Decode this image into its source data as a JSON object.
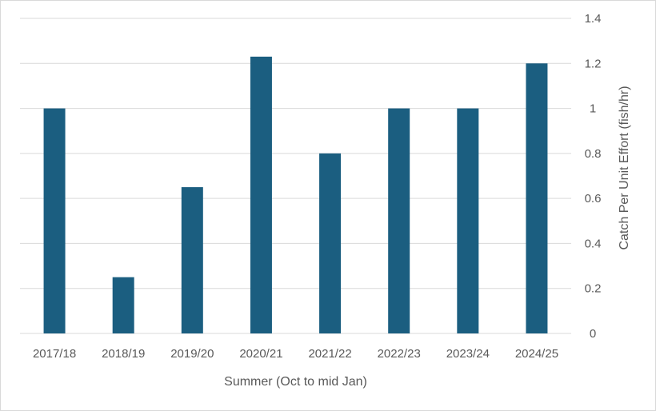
{
  "chart_data": {
    "type": "bar",
    "title": "",
    "xlabel": "Summer (Oct to mid Jan)",
    "ylabel": "Catch Per Unit Effort (fish/hr)",
    "ylim": [
      0,
      1.4
    ],
    "yticks": [
      "0",
      "0.2",
      "0.4",
      "0.6",
      "0.8",
      "1",
      "1.2",
      "1.4"
    ],
    "y_axis_side": "right",
    "grid": true,
    "legend": "none",
    "categories": [
      "2017/18",
      "2018/19",
      "2019/20",
      "2020/21",
      "2021/22",
      "2022/23",
      "2023/24",
      "2024/25"
    ],
    "values": [
      1.0,
      0.25,
      0.65,
      1.23,
      0.8,
      1.0,
      1.0,
      1.2
    ],
    "colors": {
      "bar": "#1b5e80",
      "grid": "#d9d9d9",
      "text": "#595959"
    }
  }
}
